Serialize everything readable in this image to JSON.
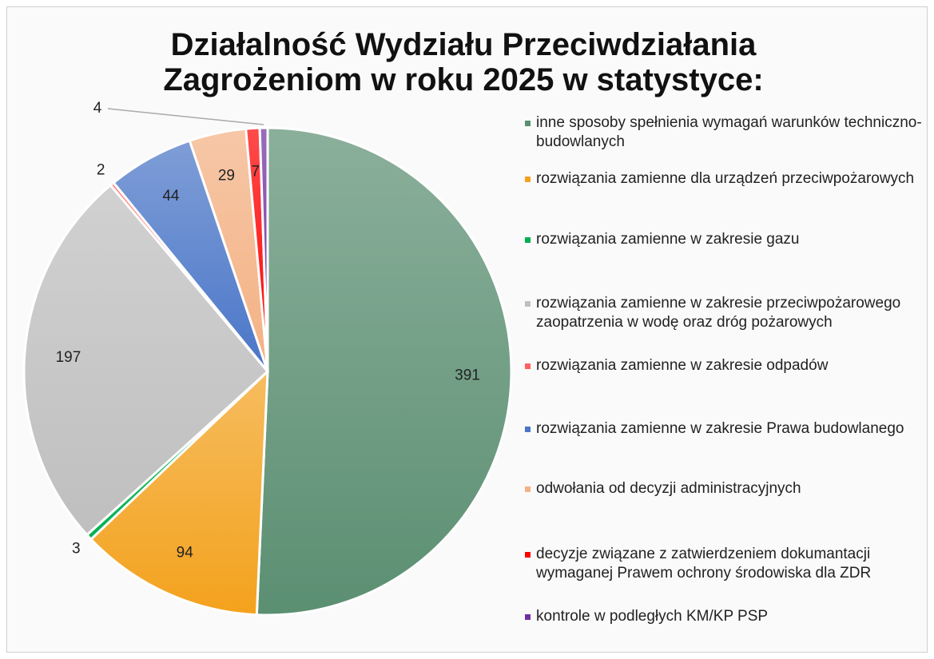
{
  "chart_data": {
    "type": "pie",
    "title": "Działalność Wydziału Przeciwdziałania Zagrożeniom w roku 2025 w statystyce:",
    "categories": [
      "inne sposoby spełnienia wymagań warunków techniczno-budowlanych",
      "rozwiązania zamienne dla urządzeń przeciwpożarowych",
      "rozwiązania zamienne w zakresie gazu",
      "rozwiązania zamienne w zakresie przeciwpożarowego zaopatrzenia w wodę oraz dróg pożarowych",
      "rozwiązania zamienne w zakresie odpadów",
      "rozwiązania zamienne w zakresie Prawa budowlanego",
      "odwołania od decyzji administracyjnych",
      "decyzje związane z zatwierdzeniem dokumantacji wymaganej Prawem ochrony środowiska dla ZDR",
      "kontrole w podległych KM/KP PSP"
    ],
    "values": [
      391,
      94,
      3,
      197,
      2,
      44,
      29,
      7,
      4
    ],
    "colors": [
      "#5b8f72",
      "#f4a21d",
      "#00b050",
      "#bfbfbf",
      "#ff6060",
      "#4a76c8",
      "#f4b183",
      "#ff0000",
      "#7030a0"
    ],
    "legend": "right"
  }
}
